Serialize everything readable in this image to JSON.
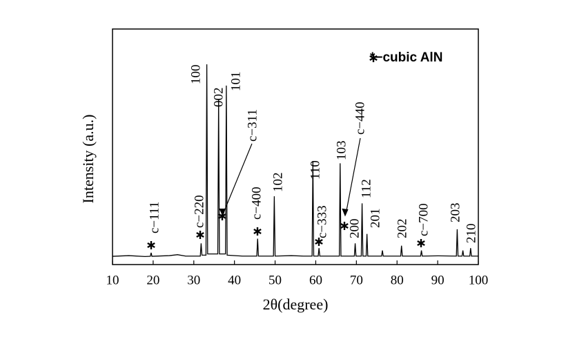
{
  "chart_data": {
    "type": "line",
    "x_label": "2θ(degree)",
    "y_label": "Intensity (a.u.)",
    "legend": "*−cubic AlN",
    "xlim": [
      10,
      100
    ],
    "xticks": [
      10,
      20,
      30,
      40,
      50,
      60,
      70,
      80,
      90,
      100
    ],
    "ylim": [
      0,
      100
    ],
    "series": [
      {
        "color": "#000000",
        "x": [
          10,
          14,
          18,
          19.3,
          19.5,
          19.7,
          24,
          26,
          28,
          31.6,
          31.8,
          32.0,
          33.0,
          33.2,
          33.4,
          35.9,
          36.1,
          36.3,
          37.8,
          38.0,
          38.2,
          42,
          45.5,
          45.7,
          45.9,
          49.6,
          49.8,
          50.0,
          54,
          57,
          59.1,
          59.3,
          59.5,
          60.6,
          60.8,
          61.0,
          65.8,
          66.0,
          66.2,
          69.5,
          69.7,
          69.9,
          71.2,
          71.4,
          71.6,
          72.4,
          72.6,
          72.8,
          76.2,
          76.4,
          76.6,
          80.9,
          81.1,
          81.3,
          85.8,
          86.0,
          86.2,
          90,
          94.6,
          94.8,
          95.0,
          96.0,
          96.2,
          96.4,
          97.9,
          98.1,
          98.3,
          100
        ],
        "values": [
          3.5,
          3.8,
          3.4,
          3.5,
          5,
          3.5,
          3.8,
          4.2,
          3.6,
          3.6,
          9,
          4,
          4,
          85,
          4.5,
          4.5,
          70,
          4.5,
          4.5,
          76,
          4,
          3.6,
          3.6,
          11,
          3.6,
          3.6,
          29,
          3.6,
          3.8,
          3.6,
          3.6,
          44,
          3.6,
          3.6,
          7,
          3.6,
          3.6,
          43,
          3.6,
          3.6,
          9,
          3.6,
          3.6,
          26,
          3.6,
          3.6,
          13,
          3.6,
          3.6,
          6,
          3.6,
          3.6,
          8,
          3.6,
          3.6,
          6,
          3.6,
          3.7,
          3.6,
          15,
          3.6,
          3.6,
          6,
          3.6,
          3.6,
          7,
          3.6,
          3.6
        ]
      }
    ],
    "annotations": [
      "c−111",
      "c−220",
      "100",
      "002",
      "101",
      "c−311",
      "c−400",
      "102",
      "110",
      "c−333",
      "103",
      "c−440",
      "200",
      "112",
      "201",
      "202",
      "c−700",
      "203",
      "210"
    ]
  }
}
